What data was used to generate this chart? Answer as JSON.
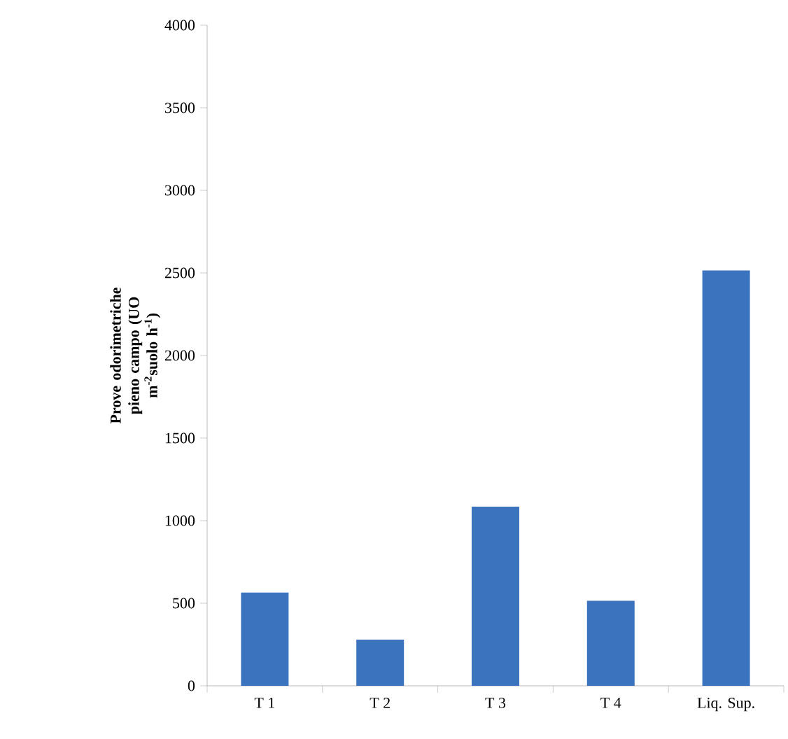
{
  "chart_data": {
    "type": "bar",
    "ylabel": "Prove odorimetriche pieno campo (UO m$^{-2}$suolo h$^{-1}$)",
    "categories": [
      "T 1",
      "T 2",
      "T 3",
      "T 4",
      "Liq. Sup."
    ],
    "values": [
      565,
      280,
      1085,
      515,
      2515
    ],
    "color": "#3b73bf",
    "ylim": [
      0,
      4000
    ],
    "yticks": [
      0,
      500,
      1000,
      1500,
      2000,
      2500,
      3000,
      3500,
      4000
    ],
    "grid": false
  }
}
